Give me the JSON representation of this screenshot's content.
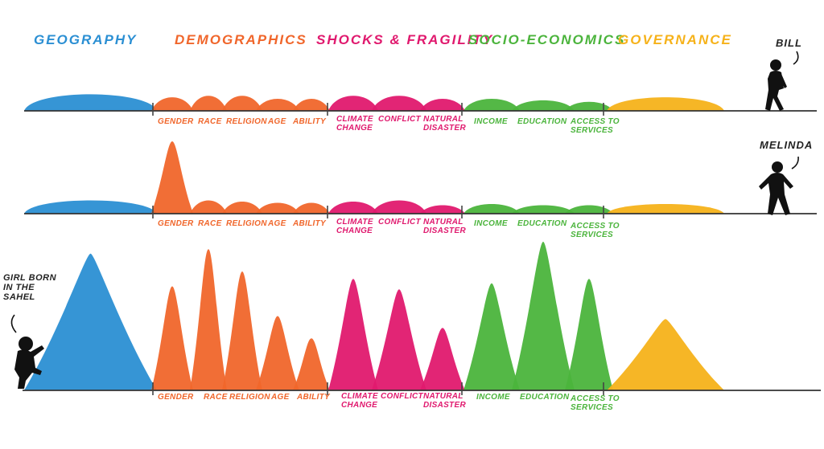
{
  "categories": [
    {
      "key": "geo",
      "label": "GEOGRAPHY",
      "color": "#2b8fd3"
    },
    {
      "key": "demo",
      "label": "DEMOGRAPHICS",
      "color": "#f0662b"
    },
    {
      "key": "shock",
      "label": "SHOCKS & FRAGILITY",
      "color": "#e0196e"
    },
    {
      "key": "socio",
      "label": "SOCIO-ECONOMICS",
      "color": "#4bb43c"
    },
    {
      "key": "gov",
      "label": "GOVERNANCE",
      "color": "#f6b21a"
    }
  ],
  "factor_labels": {
    "gender": "GENDER",
    "race": "RACE",
    "religion": "RELIGION",
    "age": "AGE",
    "ability": "ABILITY",
    "climate_1": "CLIMATE",
    "climate_2": "CHANGE",
    "conflict": "CONFLICT",
    "disaster_1": "NATURAL",
    "disaster_2": "DISASTER",
    "income": "INCOME",
    "education": "EDUCATION",
    "access_1": "ACCESS TO",
    "access_2": "SERVICES"
  },
  "people": {
    "bill": "BILL",
    "melinda": "MELINDA",
    "girl_1": "GIRL BORN",
    "girl_2": "IN THE",
    "girl_3": "SAHEL"
  },
  "rows": [
    {
      "person": "BILL",
      "levels": {
        "geography": 0.22,
        "gender": 0.18,
        "race": 0.2,
        "religion": 0.2,
        "age": 0.16,
        "ability": 0.16,
        "climate_change": 0.2,
        "conflict": 0.2,
        "natural_disaster": 0.16,
        "income": 0.16,
        "education": 0.14,
        "access_to_services": 0.12,
        "governance": 0.18
      }
    },
    {
      "person": "MELINDA",
      "levels": {
        "geography": 0.22,
        "gender": 0.9,
        "race": 0.22,
        "religion": 0.2,
        "age": 0.18,
        "ability": 0.18,
        "climate_change": 0.2,
        "conflict": 0.22,
        "natural_disaster": 0.14,
        "income": 0.16,
        "education": 0.14,
        "access_to_services": 0.14,
        "governance": 0.16
      }
    },
    {
      "person": "GIRL BORN IN THE SAHEL",
      "levels": {
        "geography": 0.92,
        "gender": 0.7,
        "race": 0.95,
        "religion": 0.8,
        "age": 0.5,
        "ability": 0.35,
        "climate_change": 0.75,
        "conflict": 0.68,
        "natural_disaster": 0.42,
        "income": 0.72,
        "education": 1.0,
        "access_to_services": 0.75,
        "governance": 0.48
      }
    }
  ]
}
